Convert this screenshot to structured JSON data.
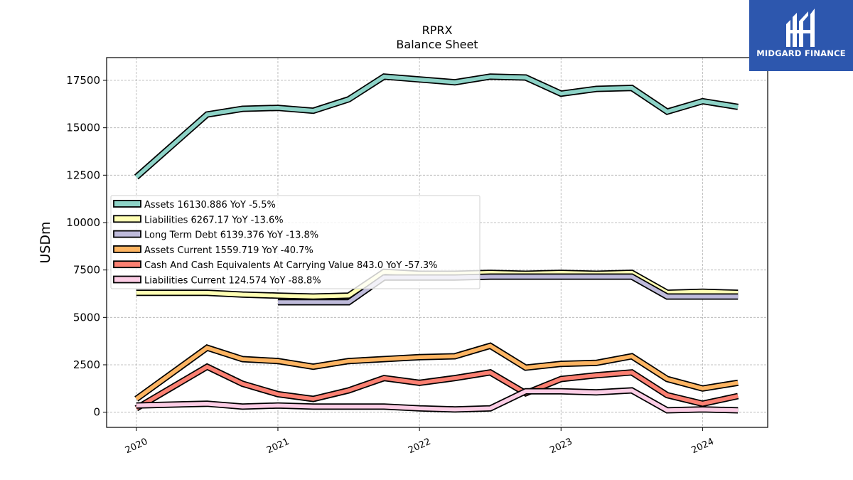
{
  "logo": {
    "text": "MIDGARD FINANCE",
    "icon": "midgard-logo-icon",
    "background": "#2d57ae"
  },
  "chart_data": {
    "type": "line",
    "title": "RPRX",
    "subtitle": "Balance  Sheet",
    "ylabel": "USDm",
    "ylim": [
      -800,
      18700
    ],
    "xlim": [
      2019.79,
      2024.46
    ],
    "yticks": [
      0,
      2500,
      5000,
      7500,
      10000,
      12500,
      15000,
      17500
    ],
    "ytick_labels": [
      "0",
      "2500",
      "5000",
      "7500",
      "10000",
      "12500",
      "15000",
      "17500"
    ],
    "xticks": [
      2020,
      2021,
      2022,
      2023,
      2024
    ],
    "xtick_labels": [
      "2020",
      "2021",
      "2022",
      "2023",
      "2024"
    ],
    "grid": true,
    "legend_position": "upper-left",
    "series": [
      {
        "name": "Assets  16130.886 YoY -5.5%",
        "color": "#8dd3c7",
        "x": [
          2020.0,
          2020.5,
          2020.75,
          2021.0,
          2021.25,
          2021.5,
          2021.75,
          2022.0,
          2022.25,
          2022.5,
          2022.75,
          2023.0,
          2023.25,
          2023.5,
          2023.75,
          2024.0,
          2024.25
        ],
        "y": [
          12400,
          15700,
          16000,
          16050,
          15900,
          16500,
          17700,
          17550,
          17400,
          17700,
          17650,
          16800,
          17050,
          17100,
          15850,
          16400,
          16100
        ]
      },
      {
        "name": "Liabilities  6267.17 YoY -13.6%",
        "color": "#ffffb3",
        "x": [
          2020.0,
          2020.5,
          2020.75,
          2021.0,
          2021.25,
          2021.5,
          2021.75,
          2022.0,
          2022.25,
          2022.5,
          2022.75,
          2023.0,
          2023.25,
          2023.5,
          2023.75,
          2024.0,
          2024.25
        ],
        "y": [
          6300,
          6300,
          6200,
          6150,
          6100,
          6150,
          7400,
          7300,
          7300,
          7350,
          7300,
          7350,
          7300,
          7350,
          6300,
          6350,
          6300
        ]
      },
      {
        "name": "Long Term Debt  6139.376 YoY -13.8%",
        "color": "#bebada",
        "x": [
          2021.0,
          2021.5,
          2021.75,
          2022.0,
          2022.25,
          2022.5,
          2022.75,
          2023.0,
          2023.25,
          2023.5,
          2023.75,
          2024.0,
          2024.25
        ],
        "y": [
          5800,
          5800,
          7100,
          7100,
          7100,
          7150,
          7150,
          7150,
          7150,
          7150,
          6100,
          6100,
          6100
        ]
      },
      {
        "name": "Assets Current  1559.719 YoY -40.7%",
        "color": "#fdb462",
        "x": [
          2020.0,
          2020.5,
          2020.75,
          2021.0,
          2021.25,
          2021.5,
          2021.75,
          2022.0,
          2022.25,
          2022.5,
          2022.75,
          2023.0,
          2023.25,
          2023.5,
          2023.75,
          2024.0,
          2024.25
        ],
        "y": [
          700,
          3400,
          2800,
          2700,
          2400,
          2700,
          2800,
          2900,
          2950,
          3500,
          2350,
          2550,
          2600,
          2950,
          1750,
          1250,
          1550
        ]
      },
      {
        "name": "Cash And Cash Equivalents At Carrying Value  843.0 YoY -57.3%",
        "color": "#fb8072",
        "x": [
          2020.0,
          2020.5,
          2020.75,
          2021.0,
          2021.25,
          2021.5,
          2021.75,
          2022.0,
          2022.25,
          2022.5,
          2022.75,
          2023.0,
          2023.25,
          2023.5,
          2023.75,
          2024.0,
          2024.25
        ],
        "y": [
          200,
          2400,
          1500,
          950,
          700,
          1150,
          1800,
          1550,
          1800,
          2100,
          1000,
          1750,
          1950,
          2100,
          900,
          450,
          850
        ]
      },
      {
        "name": "Liabilities Current  124.574 YoY -88.8%",
        "color": "#fccde5",
        "x": [
          2020.0,
          2020.5,
          2020.75,
          2021.0,
          2021.25,
          2021.5,
          2021.75,
          2022.0,
          2022.25,
          2022.5,
          2022.75,
          2023.0,
          2023.25,
          2023.5,
          2023.75,
          2024.0,
          2024.25
        ],
        "y": [
          350,
          450,
          300,
          350,
          300,
          300,
          300,
          200,
          150,
          200,
          1100,
          1100,
          1050,
          1150,
          100,
          150,
          100
        ]
      }
    ]
  }
}
